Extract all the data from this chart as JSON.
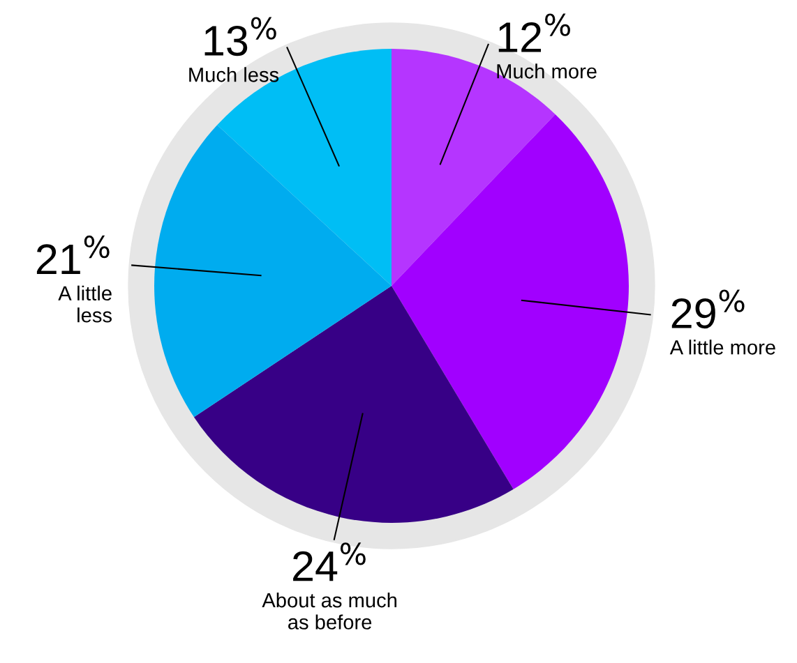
{
  "chart_data": {
    "type": "pie",
    "categories": [
      "Much more",
      "A little more",
      "About as much\nas before",
      "A little\nless",
      "Much less"
    ],
    "values": [
      12,
      29,
      24,
      21,
      13
    ],
    "colors": [
      "#b535ff",
      "#a100ff",
      "#370086",
      "#00acef",
      "#00bef5"
    ],
    "value_labels": [
      "12$^{%}$",
      "29$^{%}$",
      "24$^{%}$",
      "21$^{%}$",
      "13$^{%}$"
    ],
    "legend": false
  }
}
